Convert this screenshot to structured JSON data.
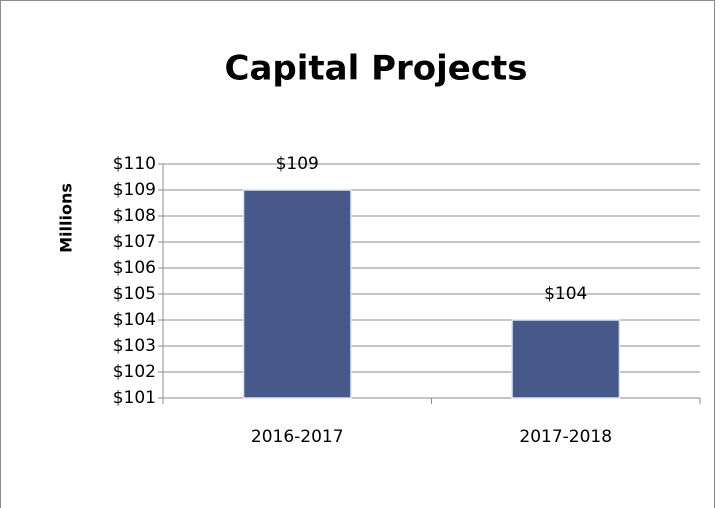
{
  "chart_data": {
    "type": "bar",
    "title": "Capital Projects",
    "y_label": "Millions",
    "categories": [
      "2016-2017",
      "2017-2018"
    ],
    "values": [
      109,
      104
    ],
    "value_labels": [
      "$109",
      "$104"
    ],
    "color": "#47588b",
    "ylim": [
      101,
      110
    ],
    "yticks": [
      {
        "value": 101,
        "label": "$101"
      },
      {
        "value": 102,
        "label": "$102"
      },
      {
        "value": 103,
        "label": "$103"
      },
      {
        "value": 104,
        "label": "$104"
      },
      {
        "value": 105,
        "label": "$105"
      },
      {
        "value": 106,
        "label": "$106"
      },
      {
        "value": 107,
        "label": "$107"
      },
      {
        "value": 108,
        "label": "$108"
      },
      {
        "value": 109,
        "label": "$109"
      },
      {
        "value": 110,
        "label": "$110"
      }
    ],
    "grid": true
  }
}
